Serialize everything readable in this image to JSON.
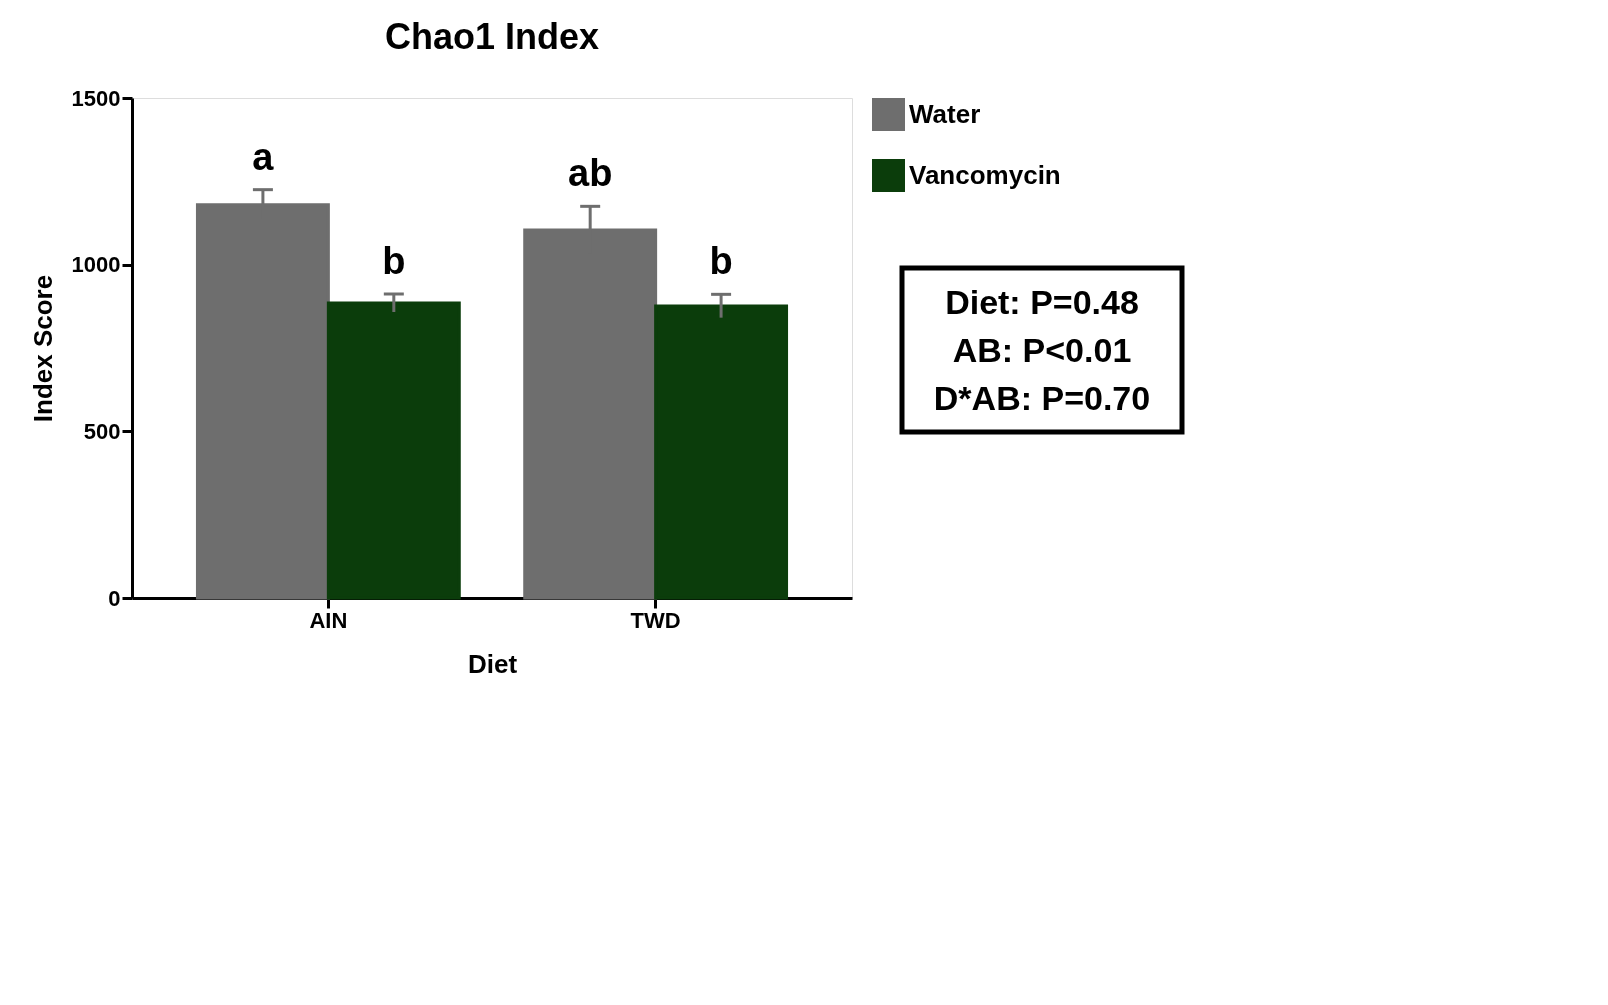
{
  "chart_data": {
    "type": "bar",
    "title": "Chao1 Index",
    "xlabel": "Diet",
    "ylabel": "Index Score",
    "categories": [
      "AIN",
      "TWD"
    ],
    "series": [
      {
        "name": "Water",
        "color": "#6e6e6e",
        "values": [
          1180,
          1104
        ],
        "errors": [
          45,
          71
        ],
        "value_labels": [
          "a",
          "ab"
        ]
      },
      {
        "name": "Vancomycin",
        "color": "#0b3d0b",
        "values": [
          885,
          876
        ],
        "errors": [
          27,
          35
        ],
        "value_labels": [
          "b",
          "b"
        ]
      }
    ],
    "ylim": [
      0,
      1500
    ],
    "yticks": [
      0,
      500,
      1000,
      1500
    ],
    "grid": false,
    "legend": "top right",
    "annotations": [
      "Diet: P=0.48",
      "AB: P<0.01",
      "D*AB: P=0.70"
    ]
  }
}
